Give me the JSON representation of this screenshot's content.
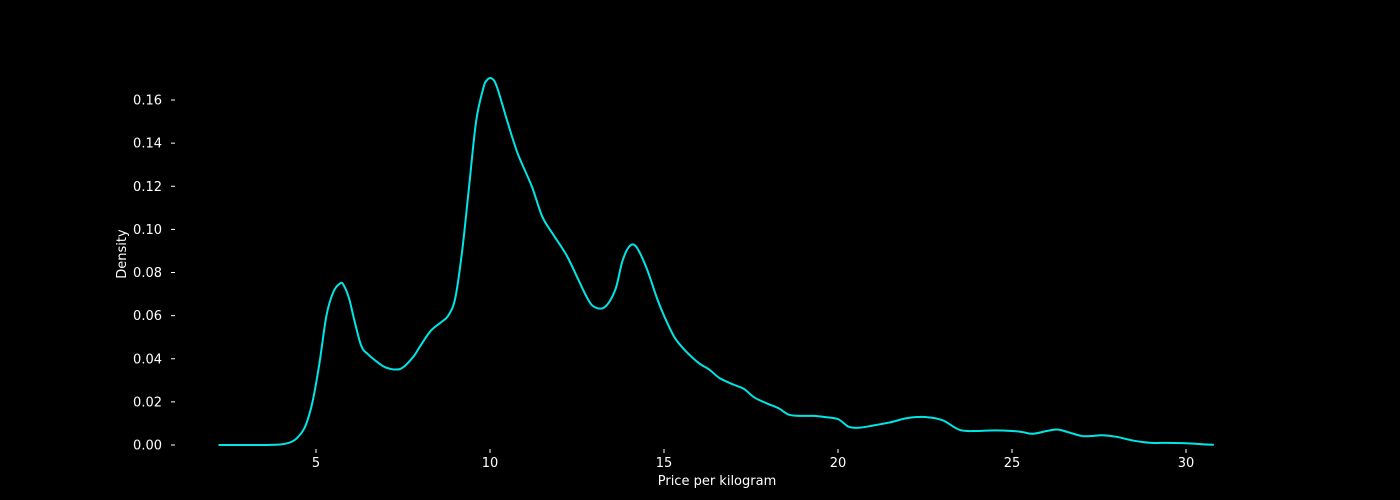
{
  "chart_data": {
    "type": "line",
    "title": "",
    "xlabel": "Price per kilogram",
    "ylabel": "Density",
    "xlim": [
      2.2,
      30.8
    ],
    "ylim": [
      0,
      0.17
    ],
    "x_ticks": [
      5,
      10,
      15,
      20,
      25,
      30
    ],
    "x_tick_labels": [
      "5",
      "10",
      "15",
      "20",
      "25",
      "30"
    ],
    "y_ticks": [
      0,
      0.02,
      0.04,
      0.06,
      0.08,
      0.1,
      0.12,
      0.14,
      0.16
    ],
    "y_tick_labels": [
      "0.00",
      "0.02",
      "0.04",
      "0.06",
      "0.08",
      "0.10",
      "0.12",
      "0.14",
      "0.16"
    ],
    "grid": false,
    "legend": "none",
    "colors": {
      "background": "#000000",
      "line": "#00e5e5",
      "text": "#ffffff"
    },
    "series": [
      {
        "x": [
          2.2,
          3.0,
          3.5,
          4.0,
          4.3,
          4.5,
          4.7,
          4.9,
          5.1,
          5.3,
          5.5,
          5.7,
          5.8,
          5.95,
          6.1,
          6.3,
          6.5,
          6.8,
          7.0,
          7.3,
          7.5,
          7.8,
          8.0,
          8.3,
          8.6,
          8.8,
          9.0,
          9.2,
          9.4,
          9.6,
          9.8,
          9.9,
          10.05,
          10.2,
          10.5,
          10.8,
          11.2,
          11.5,
          11.8,
          12.2,
          12.5,
          12.8,
          13.0,
          13.3,
          13.6,
          13.8,
          14.0,
          14.2,
          14.5,
          14.8,
          15.0,
          15.3,
          15.6,
          16.0,
          16.3,
          16.6,
          17.0,
          17.3,
          17.6,
          18.0,
          18.3,
          18.6,
          19.0,
          19.3,
          19.6,
          20.0,
          20.3,
          20.6,
          21.0,
          21.5,
          22.0,
          22.5,
          23.0,
          23.5,
          24.0,
          24.5,
          25.0,
          25.3,
          25.6,
          26.0,
          26.3,
          26.6,
          27.0,
          27.3,
          27.6,
          28.0,
          28.5,
          29.0,
          29.5,
          30.0,
          30.5,
          30.8
        ],
        "y": [
          0.0,
          0.0,
          0.0,
          0.0003,
          0.0015,
          0.004,
          0.009,
          0.02,
          0.038,
          0.06,
          0.071,
          0.075,
          0.074,
          0.068,
          0.058,
          0.046,
          0.042,
          0.038,
          0.036,
          0.035,
          0.036,
          0.041,
          0.046,
          0.053,
          0.057,
          0.06,
          0.068,
          0.09,
          0.12,
          0.15,
          0.165,
          0.169,
          0.17,
          0.166,
          0.15,
          0.135,
          0.12,
          0.106,
          0.098,
          0.088,
          0.078,
          0.068,
          0.064,
          0.064,
          0.072,
          0.085,
          0.092,
          0.092,
          0.082,
          0.068,
          0.06,
          0.05,
          0.044,
          0.038,
          0.035,
          0.031,
          0.028,
          0.026,
          0.022,
          0.019,
          0.017,
          0.014,
          0.0135,
          0.0135,
          0.013,
          0.012,
          0.0085,
          0.008,
          0.009,
          0.0105,
          0.0125,
          0.013,
          0.0115,
          0.007,
          0.0065,
          0.0068,
          0.0065,
          0.006,
          0.0052,
          0.0065,
          0.0072,
          0.006,
          0.0042,
          0.0042,
          0.0045,
          0.0038,
          0.002,
          0.001,
          0.001,
          0.0008,
          0.0003,
          0.0001
        ]
      }
    ]
  }
}
